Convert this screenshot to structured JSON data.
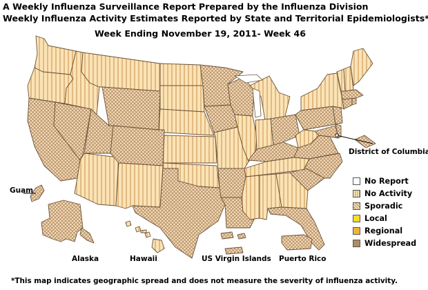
{
  "titles": {
    "line1": "A Weekly Influenza Surveillance Report Prepared by the Influenza Division",
    "line2": "Weekly Influenza Activity Estimates Reported by State and Territorial Epidemiologists*",
    "week": "Week Ending November 19, 2011- Week 46"
  },
  "labels": {
    "dc": "District of Columbia",
    "guam": "Guam",
    "alaska": "Alaska",
    "hawaii": "Hawaii",
    "usvi": "US Virgin Islands",
    "pr": "Puerto Rico"
  },
  "legend": [
    {
      "label": "No Report",
      "color": "#ffffff",
      "pattern": "none"
    },
    {
      "label": "No Activity",
      "color": "#fbe3b5",
      "pattern": "vertical-stripes"
    },
    {
      "label": "Sporadic",
      "color": "#f0d8b0",
      "pattern": "crosshatch"
    },
    {
      "label": "Local",
      "color": "#f4dc2c",
      "pattern": "solid"
    },
    {
      "label": "Regional",
      "color": "#f0b43c",
      "pattern": "solid"
    },
    {
      "label": "Widespread",
      "color": "#b08c64",
      "pattern": "solid"
    }
  ],
  "activity": {
    "no_activity": [
      "Washington",
      "Oregon",
      "Idaho",
      "Montana",
      "North Dakota",
      "South Dakota",
      "Nebraska",
      "Kansas",
      "Oklahoma",
      "Missouri",
      "Iowa",
      "Illinois",
      "Michigan",
      "Indiana",
      "Tennessee",
      "Mississippi",
      "Alabama",
      "Georgia",
      "New Mexico",
      "Arizona",
      "Maine",
      "Vermont",
      "New Hampshire",
      "New York",
      "West Virginia",
      "Hawaii"
    ],
    "sporadic": [
      "California",
      "Nevada",
      "Utah",
      "Wyoming",
      "Colorado",
      "Texas",
      "Minnesota",
      "Wisconsin",
      "Arkansas",
      "Louisiana",
      "Kentucky",
      "Ohio",
      "Pennsylvania",
      "North Carolina",
      "South Carolina",
      "Florida",
      "Virginia",
      "Maryland",
      "Delaware",
      "New Jersey",
      "Connecticut",
      "Massachusetts",
      "Rhode Island",
      "Alaska",
      "Guam",
      "US Virgin Islands",
      "Puerto Rico"
    ],
    "no_report": [
      "District of Columbia"
    ]
  },
  "footnote": "*This map indicates geographic spread and does not measure the severity of influenza activity."
}
